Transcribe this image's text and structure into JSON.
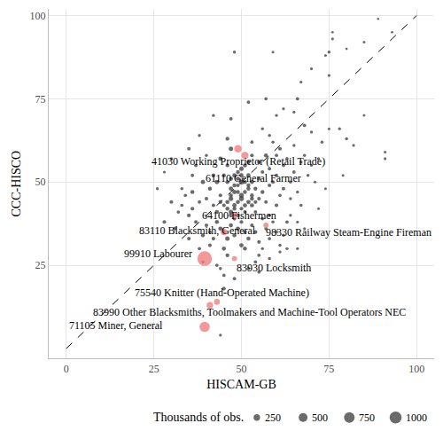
{
  "chart_data": {
    "type": "scatter",
    "x_label": "HISCAM-GB",
    "y_label": "CCC-HISCO",
    "xlim": [
      -5,
      105
    ],
    "ylim": [
      -3,
      102
    ],
    "xticks": [
      0,
      25,
      50,
      75,
      100
    ],
    "yticks": [
      25,
      50,
      75,
      100
    ],
    "grid": true,
    "points": {
      "color": "#3a3a3a",
      "x": [
        93,
        89,
        85,
        76,
        76,
        75,
        74,
        80,
        70,
        75,
        66,
        67,
        59,
        48,
        62,
        65,
        68,
        75,
        78,
        80,
        70,
        82,
        91,
        91,
        73,
        85,
        52,
        57,
        42,
        47,
        38,
        35,
        40,
        28,
        30,
        26,
        44,
        45,
        45,
        30,
        32,
        33,
        35,
        31,
        28,
        38,
        36,
        39,
        42,
        40,
        41,
        43,
        44,
        42,
        43,
        45,
        46,
        44,
        47,
        46,
        47,
        48,
        49,
        50,
        48,
        47,
        49,
        50,
        51,
        52,
        46,
        47,
        48,
        49,
        50,
        51,
        52,
        53,
        49,
        48,
        50,
        51,
        52,
        53,
        54,
        55,
        53,
        54,
        55,
        56,
        57,
        58,
        56,
        55,
        57,
        58,
        59,
        60,
        61,
        60,
        62,
        63,
        61,
        64,
        65,
        62,
        60,
        59,
        58,
        63,
        64,
        66,
        67,
        68,
        65,
        69,
        70,
        72,
        67,
        71,
        43,
        44,
        45,
        46,
        47,
        48,
        49,
        50,
        51,
        52,
        53,
        54,
        55,
        56,
        50,
        51,
        45,
        46,
        42,
        41,
        40,
        39,
        37,
        36,
        38,
        35,
        34,
        33,
        36,
        37,
        57,
        58,
        59,
        60,
        61,
        56,
        55,
        54,
        62,
        63,
        46,
        47,
        48,
        49,
        50,
        51,
        52,
        53,
        47,
        48,
        49,
        50,
        51,
        52,
        53,
        54,
        44,
        45,
        46,
        47,
        64,
        66,
        68,
        72,
        74,
        58,
        56,
        53,
        60,
        41,
        39,
        43,
        44,
        48,
        52,
        55,
        58,
        61,
        66,
        79
      ],
      "y": [
        95,
        99,
        92,
        93,
        95,
        89,
        88,
        90,
        84,
        82,
        75,
        80,
        89,
        89,
        72,
        71,
        67,
        66,
        66,
        63,
        65,
        61,
        59,
        57,
        62,
        70,
        74,
        75,
        70,
        69,
        64,
        60,
        58,
        53,
        57,
        48,
        4,
        18,
        22,
        44,
        41,
        43,
        40,
        36,
        38,
        30,
        47,
        50,
        52,
        45,
        48,
        50,
        46,
        43,
        41,
        52,
        55,
        57,
        60,
        63,
        45,
        47,
        44,
        46,
        42,
        41,
        49,
        50,
        43,
        48,
        44,
        46,
        43,
        47,
        45,
        41,
        44,
        46,
        40,
        39,
        42,
        47,
        52,
        50,
        48,
        45,
        43,
        41,
        51,
        47,
        44,
        49,
        53,
        56,
        58,
        54,
        50,
        52,
        46,
        43,
        55,
        57,
        60,
        50,
        53,
        48,
        58,
        62,
        40,
        38,
        45,
        47,
        56,
        58,
        61,
        52,
        55,
        57,
        43,
        50,
        38,
        36,
        35,
        33,
        37,
        34,
        36,
        38,
        35,
        33,
        37,
        35,
        32,
        39,
        31,
        30,
        30,
        28,
        33,
        35,
        37,
        34,
        38,
        42,
        44,
        33,
        46,
        48,
        52,
        55,
        36,
        33,
        38,
        35,
        31,
        30,
        28,
        26,
        34,
        30,
        50,
        51,
        52,
        53,
        54,
        55,
        56,
        58,
        48,
        49,
        51,
        52,
        50,
        49,
        45,
        44,
        44,
        43,
        42,
        40,
        40,
        38,
        36,
        42,
        48,
        64,
        66,
        62,
        70,
        31,
        26,
        25,
        24,
        21,
        24,
        23,
        27,
        29,
        30,
        52
      ],
      "size": [
        20,
        15,
        25,
        30,
        20,
        40,
        25,
        20,
        30,
        35,
        45,
        30,
        25,
        40,
        30,
        35,
        50,
        25,
        30,
        40,
        35,
        30,
        25,
        30,
        40,
        20,
        45,
        40,
        35,
        50,
        40,
        55,
        35,
        30,
        40,
        35,
        30,
        60,
        45,
        60,
        50,
        45,
        70,
        55,
        60,
        45,
        80,
        90,
        70,
        60,
        75,
        90,
        60,
        55,
        80,
        70,
        65,
        90,
        100,
        70,
        110,
        90,
        80,
        120,
        70,
        100,
        60,
        140,
        90,
        80,
        85,
        75,
        95,
        70,
        130,
        60,
        90,
        70,
        80,
        65,
        60,
        75,
        90,
        80,
        70,
        65,
        85,
        55,
        60,
        70,
        55,
        65,
        60,
        70,
        80,
        50,
        60,
        55,
        45,
        60,
        50,
        45,
        60,
        40,
        50,
        55,
        45,
        40,
        50,
        45,
        40,
        35,
        45,
        40,
        35,
        40,
        30,
        35,
        40,
        30,
        80,
        90,
        70,
        100,
        85,
        75,
        90,
        60,
        70,
        80,
        65,
        70,
        60,
        50,
        90,
        75,
        80,
        70,
        65,
        55,
        60,
        70,
        55,
        65,
        50,
        60,
        45,
        40,
        50,
        55,
        45,
        50,
        40,
        45,
        40,
        35,
        50,
        45,
        40,
        35,
        70,
        85,
        90,
        75,
        100,
        80,
        70,
        60,
        95,
        80,
        85,
        90,
        70,
        75,
        80,
        65,
        70,
        60,
        75,
        85,
        35,
        30,
        30,
        25,
        25,
        40,
        35,
        45,
        30,
        60,
        50,
        45,
        40,
        55,
        50,
        45,
        40,
        35,
        30,
        25
      ]
    },
    "highlighted": {
      "color": "#f08080",
      "labels": [
        "41030 Working Proprietor (Retail Trade)",
        "61110 General Farmer",
        "64100 Fishermen",
        "98330 Railway Steam-Engine Fireman",
        "83110 Blacksmith, General",
        "99910 Labourer",
        "83930 Locksmith",
        "75540 Knitter (Hand-Operated Machine)",
        "83990 Other Blacksmiths, Toolmakers and Machine-Tool Operators NEC",
        "71105 Miner, General"
      ],
      "x": [
        49,
        51,
        48,
        57,
        45,
        39.5,
        48,
        43,
        41,
        39.5
      ],
      "y": [
        60,
        58,
        40,
        37,
        35,
        27,
        27,
        14,
        13,
        6.5
      ],
      "size": [
        350,
        300,
        200,
        150,
        250,
        1500,
        150,
        200,
        250,
        700
      ]
    },
    "reference_line": {
      "x": [
        0,
        100
      ],
      "y": [
        0,
        100
      ],
      "line_style": "dashed",
      "color": "#000000"
    },
    "size_legend": {
      "title": "Thousands of obs.",
      "values": [
        250,
        500,
        750,
        1000
      ],
      "color": "#3a3a3a"
    }
  }
}
